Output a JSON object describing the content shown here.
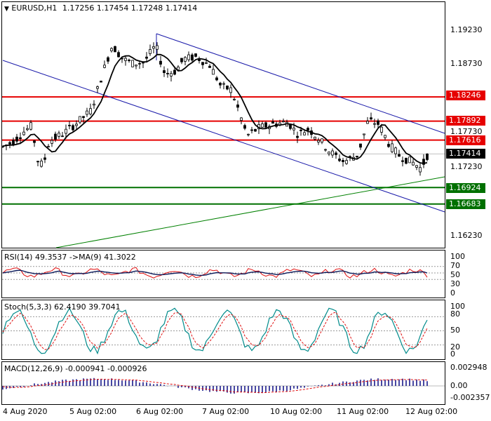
{
  "main": {
    "symbol": "EURUSD,H1",
    "ohlc": "1.17256 1.17454 1.17248 1.17414",
    "axis_labels": [
      "1.19230",
      "1.18730",
      "1.17730",
      "1.17230",
      "1.16230"
    ],
    "levels": [
      {
        "label": "1.18246",
        "color": "#e60000"
      },
      {
        "label": "1.17892",
        "color": "#e60000"
      },
      {
        "label": "1.17616",
        "color": "#e60000"
      },
      {
        "label": "1.17414",
        "color": "#000000"
      },
      {
        "label": "1.16924",
        "color": "#007000"
      },
      {
        "label": "1.16683",
        "color": "#007000"
      }
    ]
  },
  "rsi": {
    "title": "RSI(14) 49.3537 ->MA(9) 41.3022",
    "axis_labels": [
      "100",
      "70",
      "50",
      "30",
      "0"
    ]
  },
  "stoch": {
    "title": "Stoch(5,3,3) 62.4190 39.7041",
    "axis_labels": [
      "100",
      "80",
      "50",
      "20",
      "0"
    ]
  },
  "macd": {
    "title": "MACD(12,26,9) -0.000941 -0.000926",
    "axis_labels": [
      "0.002948",
      "0.00",
      "-0.002357"
    ]
  },
  "x_labels": [
    "4 Aug 2020",
    "5 Aug 02:00",
    "6 Aug 02:00",
    "7 Aug 02:00",
    "10 Aug 02:00",
    "11 Aug 02:00",
    "12 Aug 02:00"
  ],
  "colors": {
    "bull": "#000000",
    "bear": "#000000",
    "ma": "#000000",
    "channel": "#1a1aaa",
    "trend": "#008000",
    "rsi": "#e01010",
    "signal": "#0b1a5a",
    "stoch_main": "#008b8b",
    "stoch_signal": "#e01010",
    "macd_hist": "#1a1a8a"
  }
}
